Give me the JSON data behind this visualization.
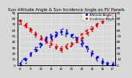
{
  "title": "Sun Altitude Angle & Sun Incidence Angle on PV Panels",
  "title_fontsize": 3.8,
  "legend_labels": [
    "Altitude Angle",
    "Incidence Angle"
  ],
  "legend_colors": [
    "#0000cc",
    "#cc0000"
  ],
  "ylim": [
    0,
    90
  ],
  "yticks": [
    0,
    10,
    20,
    30,
    40,
    50,
    60,
    70,
    80,
    90
  ],
  "xlim": [
    7.75,
    17.25
  ],
  "background_color": "#d8d8d8",
  "grid_color": "white",
  "dot_size": 1.5,
  "altitude_color": "#0000dd",
  "incidence_color": "#dd0000",
  "altitude_times": [
    8.0,
    8.5,
    9.0,
    9.5,
    10.0,
    10.5,
    11.0,
    11.5,
    12.0,
    12.5,
    13.0,
    13.5,
    14.0,
    14.5,
    15.0,
    15.5,
    16.0,
    16.5,
    17.0
  ],
  "altitude_values": [
    3,
    10,
    18,
    27,
    36,
    43,
    49,
    53,
    56,
    55,
    51,
    45,
    38,
    30,
    21,
    13,
    6,
    2,
    0
  ],
  "incidence_values": [
    75,
    68,
    61,
    54,
    48,
    42,
    36,
    31,
    28,
    31,
    36,
    42,
    49,
    56,
    63,
    70,
    76,
    81,
    84
  ],
  "xtick_positions": [
    8,
    9,
    10,
    11,
    12,
    13,
    14,
    15,
    16,
    17
  ],
  "xtick_labels": [
    "8",
    "9",
    "10",
    "11",
    "12",
    "13",
    "14",
    "15",
    "16",
    "17"
  ],
  "n_days": 12,
  "time_noise_std": 0.06,
  "val_noise_std": 2.5
}
